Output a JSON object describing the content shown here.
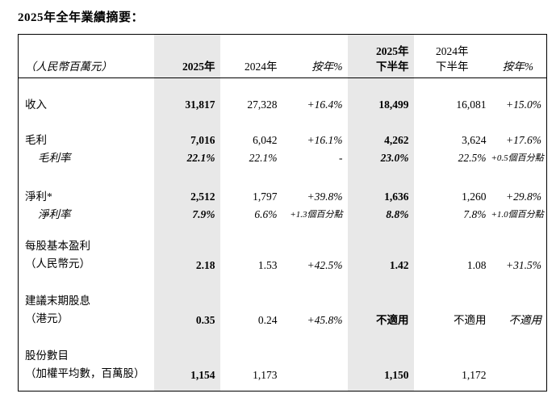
{
  "title": "2025年全年業績摘要：",
  "colors": {
    "highlight_column_bg": "#e8e8e8",
    "table_border": "#000000",
    "page_bg": "#ffffff",
    "text": "#000000"
  },
  "table": {
    "unit_note": "（人民幣百萬元）",
    "columns": {
      "fy2025": "2025年",
      "fy2024": "2024年",
      "yoy": "按年%",
      "h2_2025_line1": "2025年",
      "h2_2025_line2": "下半年",
      "h2_2024_line1": "2024年",
      "h2_2024_line2": "下半年",
      "yoy2": "按年%"
    },
    "rows": [
      {
        "label": "收入",
        "values": [
          "31,817",
          "27,328",
          "+16.4%",
          "18,499",
          "16,081",
          "+15.0%"
        ]
      },
      {
        "label": "毛利",
        "values": [
          "7,016",
          "6,042",
          "+16.1%",
          "4,262",
          "3,624",
          "+17.6%"
        ]
      },
      {
        "label": "毛利率",
        "values": [
          "22.1%",
          "22.1%",
          "-",
          "23.0%",
          "22.5%",
          "+0.5個百分點"
        ]
      },
      {
        "label": "淨利*",
        "values": [
          "2,512",
          "1,797",
          "+39.8%",
          "1,636",
          "1,260",
          "+29.8%"
        ]
      },
      {
        "label": "淨利率",
        "values": [
          "7.9%",
          "6.6%",
          "+1.3個百分點",
          "8.8%",
          "7.8%",
          "+1.0個百分點"
        ]
      },
      {
        "label": "每股基本盈利",
        "label_line2": "（人民幣元）",
        "values": [
          "2.18",
          "1.53",
          "+42.5%",
          "1.42",
          "1.08",
          "+31.5%"
        ]
      },
      {
        "label": "建議末期股息",
        "label_line2": "（港元）",
        "values": [
          "0.35",
          "0.24",
          "+45.8%",
          "不適用",
          "不適用",
          "不適用"
        ]
      },
      {
        "label": "股份數目",
        "label_line2": "（加權平均數，百萬股）",
        "values": [
          "1,154",
          "1,173",
          "",
          "1,150",
          "1,172",
          ""
        ]
      }
    ]
  }
}
